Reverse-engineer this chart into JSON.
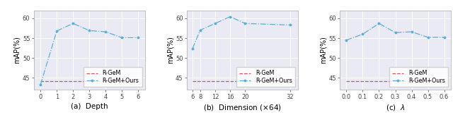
{
  "plot_a": {
    "x": [
      0,
      1,
      2,
      3,
      4,
      5,
      6
    ],
    "y_gem": [
      44.2,
      44.2,
      44.2,
      44.2,
      44.2,
      44.2,
      44.2
    ],
    "y_ours": [
      43.3,
      56.8,
      58.7,
      56.9,
      56.6,
      55.1,
      55.1
    ],
    "xlabel": "(a)  Depth",
    "ylabel": "mAP(%)",
    "xlim": [
      -0.4,
      6.4
    ],
    "ylim": [
      42,
      62
    ],
    "yticks": [
      45,
      50,
      55,
      60
    ],
    "xticks": [
      0,
      1,
      2,
      3,
      4,
      5,
      6
    ]
  },
  "plot_b": {
    "x": [
      6,
      8,
      12,
      16,
      20,
      32
    ],
    "y_gem": [
      44.2,
      44.2,
      44.2,
      44.2,
      44.2,
      44.2
    ],
    "y_ours": [
      52.4,
      57.0,
      58.7,
      60.4,
      58.7,
      58.3
    ],
    "xlabel": "(b)  Dimension ($\\times$64)",
    "ylabel": "mAP(%)",
    "xlim": [
      4.5,
      34.0
    ],
    "ylim": [
      42,
      62
    ],
    "yticks": [
      45,
      50,
      55,
      60
    ],
    "xticks": [
      6,
      8,
      12,
      16,
      20,
      32
    ]
  },
  "plot_c": {
    "x": [
      0.0,
      0.1,
      0.2,
      0.3,
      0.4,
      0.5,
      0.6
    ],
    "y_gem": [
      44.2,
      44.2,
      44.2,
      44.2,
      44.2,
      44.2,
      44.2
    ],
    "y_ours": [
      54.5,
      56.0,
      58.7,
      56.4,
      56.6,
      55.2,
      55.2
    ],
    "xlabel": "(c)  $\\lambda$",
    "ylabel": "mAP(%)",
    "xlim": [
      -0.04,
      0.64
    ],
    "ylim": [
      42,
      62
    ],
    "yticks": [
      45,
      50,
      55,
      60
    ],
    "xticks": [
      0.0,
      0.1,
      0.2,
      0.3,
      0.4,
      0.5,
      0.6
    ]
  },
  "gem_color": "#e05050",
  "ours_color": "#5aafd6",
  "gem_label": "R-GeM",
  "ours_label": "R-GeM+Ours",
  "bg_color": "#eaeaf4",
  "grid_color": "white",
  "legend_fontsize": 5.8,
  "axis_label_fontsize": 7.0,
  "tick_fontsize": 6.0,
  "xlabel_fontsize": 7.5
}
